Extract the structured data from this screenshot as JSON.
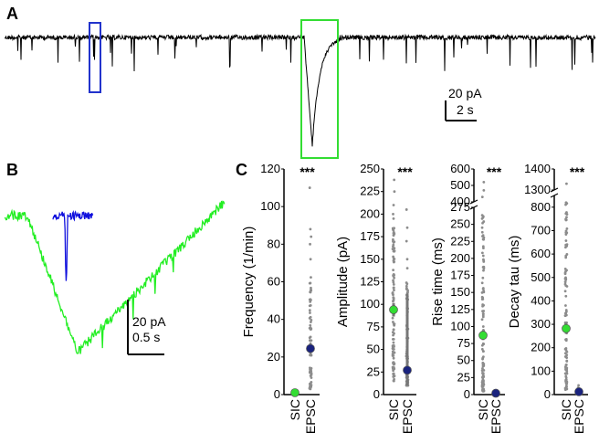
{
  "panels": {
    "a": "A",
    "b": "B",
    "c": "C"
  },
  "scalebar_a": {
    "amp": "20 pA",
    "time": "2 s"
  },
  "scalebar_b": {
    "amp": "20 pA",
    "time": "0.5 s"
  },
  "colors": {
    "trace_a": "#000000",
    "sic_trace": "#22ee22",
    "epsc_trace": "#1010dd",
    "sic_box": "#33dd33",
    "epsc_box": "#2233cc",
    "sic_mean": "#33dd33",
    "epsc_mean": "#1a237e",
    "points": "#8c8c8c",
    "error": "#777777"
  },
  "chart_data": [
    {
      "type": "scatter",
      "ylabel": "Frequency (1/min)",
      "categories": [
        "SIC",
        "EPSC"
      ],
      "significance": "***",
      "ylim": [
        0,
        120
      ],
      "yticks": [
        "0",
        "20",
        "40",
        "60",
        "80",
        "100",
        "120"
      ],
      "means": {
        "SIC": 1,
        "EPSC": 24.5
      }
    },
    {
      "type": "scatter",
      "ylabel": "Amplitude (pA)",
      "categories": [
        "SIC",
        "EPSC"
      ],
      "significance": "***",
      "ylim": [
        0,
        250
      ],
      "yticks": [
        "0",
        "25",
        "50",
        "75",
        "100",
        "125",
        "150",
        "175",
        "200",
        "225",
        "250"
      ],
      "means": {
        "SIC": 94,
        "EPSC": 27
      }
    },
    {
      "type": "scatter",
      "ylabel": "Rise time (ms)",
      "categories": [
        "SIC",
        "EPSC"
      ],
      "significance": "***",
      "ylim": [
        0,
        600
      ],
      "axis_break": [
        275,
        400
      ],
      "yticks": [
        "0",
        "25",
        "50",
        "75",
        "100",
        "125",
        "150",
        "175",
        "200",
        "225",
        "250",
        "275",
        "400",
        "500",
        "600"
      ],
      "means": {
        "SIC": 87,
        "EPSC": 2
      }
    },
    {
      "type": "scatter",
      "ylabel": "Decay tau (ms)",
      "categories": [
        "SIC",
        "EPSC"
      ],
      "significance": "***",
      "ylim": [
        0,
        1400
      ],
      "axis_break": [
        850,
        1300
      ],
      "yticks": [
        "0",
        "100",
        "200",
        "300",
        "400",
        "500",
        "600",
        "700",
        "800",
        "1300",
        "1400"
      ],
      "means": {
        "SIC": 282,
        "EPSC": 12
      }
    }
  ]
}
